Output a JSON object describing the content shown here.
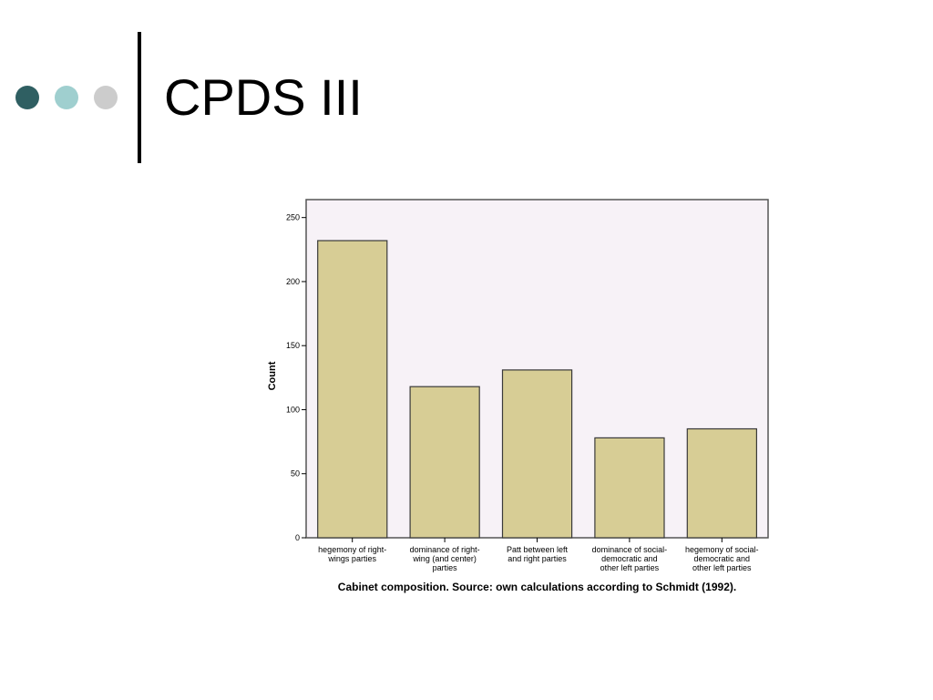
{
  "slide": {
    "title": "CPDS III",
    "dots": [
      {
        "name": "dot-dark",
        "color": "#2f5f62"
      },
      {
        "name": "dot-light",
        "color": "#9fcfcf"
      },
      {
        "name": "dot-gray",
        "color": "#cccccc"
      }
    ]
  },
  "chart_data": {
    "type": "bar",
    "categories": [
      [
        "hegemony of right-",
        "wings parties"
      ],
      [
        "dominance of right-",
        "wing (and center)",
        "parties"
      ],
      [
        "Patt between left",
        "and right parties"
      ],
      [
        "dominance of social-",
        "democratic and",
        "other left parties"
      ],
      [
        "hegemony of social-",
        "democratic and",
        "other left parties"
      ]
    ],
    "values": [
      232,
      118,
      131,
      78,
      85
    ],
    "title": "",
    "caption": "Cabinet composition. Source: own calculations according to Schmidt (1992).",
    "xlabel": "",
    "ylabel": "Count",
    "ylim": [
      0,
      264
    ],
    "yticks": [
      0,
      50,
      100,
      150,
      200,
      250
    ],
    "grid": false,
    "legend": "none",
    "colors": {
      "bar_fill": "#d7cd95",
      "bar_stroke": "#3a3a3a",
      "plot_background": "#f7f2f7",
      "frame": "#555555"
    }
  }
}
